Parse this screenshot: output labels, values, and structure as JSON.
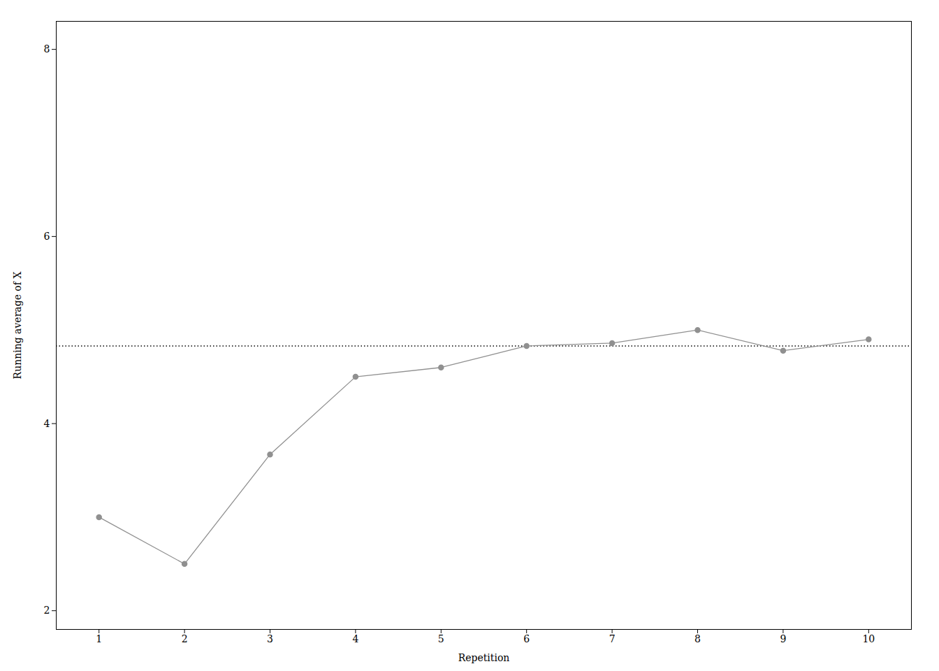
{
  "chart_data": {
    "type": "line",
    "x": [
      1,
      2,
      3,
      4,
      5,
      6,
      7,
      8,
      9,
      10
    ],
    "series": [
      {
        "values": [
          3.0,
          2.5,
          3.67,
          4.5,
          4.6,
          4.83,
          4.86,
          5.0,
          4.78,
          4.9
        ],
        "color": "#909090",
        "marker": "circle",
        "line_style": "solid"
      }
    ],
    "hline": {
      "y": 4.83,
      "color": "black",
      "line_style": "dotted"
    },
    "xlabel": "Repetition",
    "ylabel": "Running average of X",
    "xlim": [
      0.5,
      10.5
    ],
    "ylim": [
      1.8,
      8.3
    ],
    "xticks": [
      1,
      2,
      3,
      4,
      5,
      6,
      7,
      8,
      9,
      10
    ],
    "yticks": [
      2,
      4,
      6,
      8
    ],
    "grid": false
  }
}
